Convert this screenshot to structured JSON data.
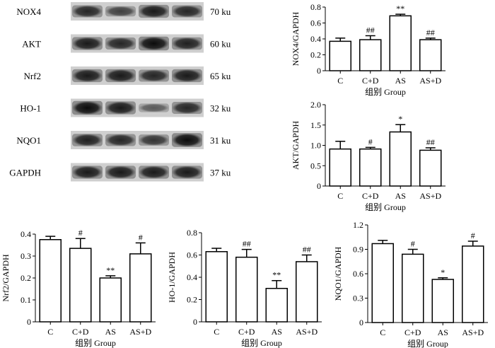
{
  "blot": {
    "rows": [
      {
        "label": "NOX4",
        "size": "70 ku",
        "intensity": [
          0.75,
          0.55,
          0.85,
          0.75
        ]
      },
      {
        "label": "AKT",
        "size": "60 ku",
        "intensity": [
          0.85,
          0.75,
          0.95,
          0.8
        ]
      },
      {
        "label": "Nrf2",
        "size": "65 ku",
        "intensity": [
          0.85,
          0.85,
          0.75,
          0.85
        ]
      },
      {
        "label": "HO-1",
        "size": "32 ku",
        "intensity": [
          0.95,
          0.85,
          0.35,
          0.75
        ]
      },
      {
        "label": "NQO1",
        "size": "31 ku",
        "intensity": [
          0.8,
          0.75,
          0.65,
          0.95
        ]
      },
      {
        "label": "GAPDH",
        "size": "37 ku",
        "intensity": [
          0.85,
          0.85,
          0.85,
          0.85
        ]
      }
    ]
  },
  "chart_data": [
    {
      "type": "bar",
      "categories": [
        "C",
        "C+D",
        "AS",
        "AS+D"
      ],
      "values": [
        0.37,
        0.39,
        0.69,
        0.39
      ],
      "errors": [
        0.04,
        0.05,
        0.02,
        0.02
      ],
      "annotations": [
        "",
        "##",
        "**",
        "##"
      ],
      "ylabel": "NOX4/GAPDH",
      "xlabel": "组别 Group",
      "ylim": [
        0,
        0.8
      ],
      "yticks": [
        0,
        0.2,
        0.4,
        0.6,
        0.8
      ],
      "ytick_labels": [
        "0",
        "0.2",
        "0.4",
        "0.6",
        "0.8"
      ]
    },
    {
      "type": "bar",
      "categories": [
        "C",
        "C+D",
        "AS",
        "AS+D"
      ],
      "values": [
        0.91,
        0.91,
        1.33,
        0.88
      ],
      "errors": [
        0.19,
        0.04,
        0.18,
        0.06
      ],
      "annotations": [
        "",
        "#",
        "*",
        "##"
      ],
      "ylabel": "AKT/GAPDH",
      "xlabel": "组别 Group",
      "ylim": [
        0,
        2.0
      ],
      "yticks": [
        0,
        0.5,
        1.0,
        1.5,
        2.0
      ],
      "ytick_labels": [
        "0",
        "0.5",
        "1.0",
        "1.5",
        "2.0"
      ]
    },
    {
      "type": "bar",
      "categories": [
        "C",
        "C+D",
        "AS",
        "AS+D"
      ],
      "values": [
        0.375,
        0.335,
        0.2,
        0.31
      ],
      "errors": [
        0.015,
        0.045,
        0.01,
        0.05
      ],
      "annotations": [
        "",
        "#",
        "**",
        "#"
      ],
      "ylabel": "Nrf2/GAPDH",
      "xlabel": "组别 Group",
      "ylim": [
        0,
        0.4
      ],
      "yticks": [
        0,
        0.1,
        0.2,
        0.3,
        0.4
      ],
      "ytick_labels": [
        "0",
        "0.1",
        "0.2",
        "0.3",
        "0.4"
      ]
    },
    {
      "type": "bar",
      "categories": [
        "C",
        "C+D",
        "AS",
        "AS+D"
      ],
      "values": [
        0.63,
        0.58,
        0.3,
        0.54
      ],
      "errors": [
        0.03,
        0.07,
        0.07,
        0.06
      ],
      "annotations": [
        "",
        "##",
        "**",
        "##"
      ],
      "ylabel": "HO-1/GAPDH",
      "xlabel": "组别 Group",
      "ylim": [
        0,
        0.8
      ],
      "yticks": [
        0,
        0.2,
        0.4,
        0.6,
        0.8
      ],
      "ytick_labels": [
        "0",
        "0.2",
        "0.4",
        "0.6",
        "0.8"
      ]
    },
    {
      "type": "bar",
      "categories": [
        "C",
        "C+D",
        "AS",
        "AS+D"
      ],
      "values": [
        0.97,
        0.84,
        0.53,
        0.94
      ],
      "errors": [
        0.04,
        0.06,
        0.02,
        0.06
      ],
      "annotations": [
        "",
        "#",
        "*",
        "#"
      ],
      "ylabel": "NQO1/GAPDH",
      "xlabel": "组别 Group",
      "ylim": [
        0,
        1.2
      ],
      "yticks": [
        0,
        0.3,
        0.6,
        0.9,
        1.2
      ],
      "ytick_labels": [
        "0",
        "0.3",
        "0.6",
        "0.9",
        "1.2"
      ]
    }
  ]
}
